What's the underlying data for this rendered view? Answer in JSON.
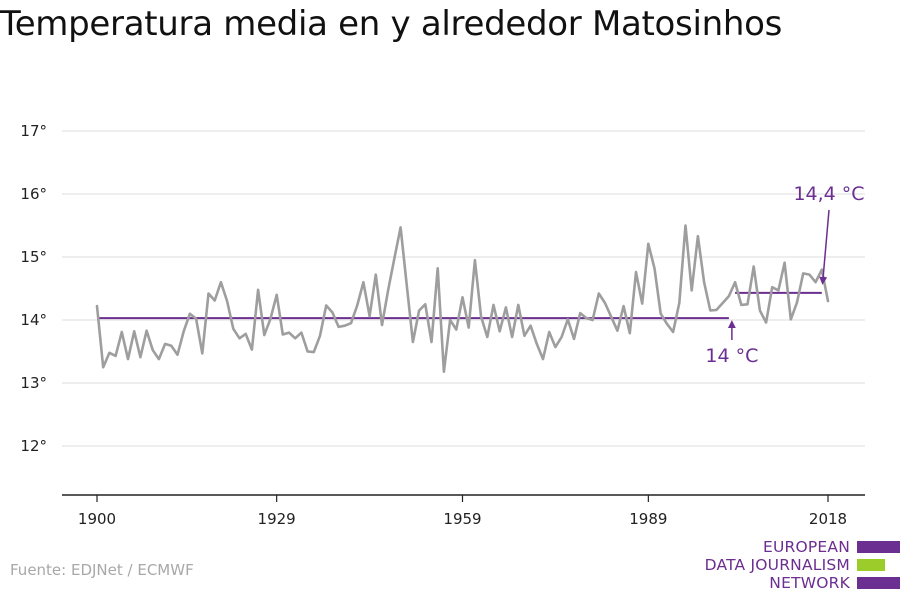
{
  "title": "Temperatura media en y alrededor Matosinhos",
  "source": "Fuente: EDJNet / ECMWF",
  "logo": {
    "lines": [
      "EUROPEAN",
      "DATA JOURNALISM",
      "NETWORK"
    ],
    "colors": {
      "purple": "#6b2e91",
      "green": "#9ccc2a"
    }
  },
  "colors": {
    "series": "#9e9e9e",
    "reference": "#6b2e91",
    "grid": "#dddddd",
    "axis": "#222222"
  },
  "chart_data": {
    "type": "line",
    "title": "Temperatura media en y alrededor Matosinhos",
    "xlabel": "",
    "ylabel": "",
    "ylim": [
      12.0,
      17.5
    ],
    "xlim": [
      1900,
      2018
    ],
    "y_ticks": [
      12,
      13,
      14,
      15,
      16,
      17
    ],
    "y_tick_labels": [
      "12°",
      "13°",
      "14°",
      "15°",
      "16°",
      "17°"
    ],
    "x_ticks": [
      1900,
      1929,
      1959,
      1989,
      2018
    ],
    "x_tick_labels": [
      "1900",
      "1929",
      "1959",
      "1989",
      "2018"
    ],
    "grid": true,
    "series": [
      {
        "x": [
          1900,
          1901,
          1902,
          1903,
          1904,
          1905,
          1906,
          1907,
          1908,
          1909,
          1910,
          1911,
          1912,
          1913,
          1914,
          1915,
          1916,
          1917,
          1918,
          1919,
          1920,
          1921,
          1922,
          1923,
          1924,
          1925,
          1926,
          1927,
          1928,
          1929,
          1930,
          1931,
          1932,
          1933,
          1934,
          1935,
          1936,
          1937,
          1938,
          1939,
          1940,
          1941,
          1942,
          1943,
          1944,
          1945,
          1946,
          1947,
          1948,
          1949,
          1950,
          1951,
          1952,
          1953,
          1954,
          1955,
          1956,
          1957,
          1958,
          1959,
          1960,
          1961,
          1962,
          1963,
          1964,
          1965,
          1966,
          1967,
          1968,
          1969,
          1970,
          1971,
          1972,
          1973,
          1974,
          1975,
          1976,
          1977,
          1978,
          1979,
          1980,
          1981,
          1982,
          1983,
          1984,
          1985,
          1986,
          1987,
          1988,
          1989,
          1990,
          1991,
          1992,
          1993,
          1994,
          1995,
          1996,
          1997,
          1998,
          1999,
          2000,
          2001,
          2002,
          2003,
          2004,
          2005,
          2006,
          2007,
          2008,
          2009,
          2010,
          2011,
          2012,
          2013,
          2014,
          2015,
          2016,
          2017,
          2018
        ],
        "values": [
          14.22,
          13.25,
          13.48,
          13.43,
          13.81,
          13.38,
          13.82,
          13.41,
          13.83,
          13.52,
          13.38,
          13.62,
          13.59,
          13.45,
          13.82,
          14.1,
          14.02,
          13.47,
          14.42,
          14.31,
          14.6,
          14.3,
          13.86,
          13.71,
          13.78,
          13.53,
          14.48,
          13.76,
          14.02,
          14.4,
          13.77,
          13.8,
          13.71,
          13.8,
          13.5,
          13.49,
          13.75,
          14.23,
          14.12,
          13.89,
          13.91,
          13.95,
          14.23,
          14.6,
          14.06,
          14.72,
          13.92,
          14.48,
          14.98,
          15.47,
          14.56,
          13.65,
          14.15,
          14.25,
          13.65,
          14.82,
          13.18,
          14.0,
          13.85,
          14.36,
          13.88,
          14.95,
          14.05,
          13.73,
          14.24,
          13.82,
          14.2,
          13.73,
          14.24,
          13.75,
          13.91,
          13.62,
          13.38,
          13.81,
          13.57,
          13.73,
          14.01,
          13.7,
          14.11,
          14.03,
          14.0,
          14.42,
          14.27,
          14.05,
          13.83,
          14.22,
          13.79,
          14.76,
          14.26,
          15.21,
          14.82,
          14.1,
          13.94,
          13.81,
          14.27,
          15.5,
          14.47,
          15.33,
          14.6,
          14.15,
          14.16,
          14.27,
          14.38,
          14.6,
          14.24,
          14.25,
          14.85,
          14.15,
          13.96,
          14.52,
          14.47,
          14.91,
          14.01,
          14.28,
          14.74,
          14.72,
          14.6,
          14.8,
          14.3
        ]
      }
    ],
    "reference_lines": [
      {
        "label": "14 °C",
        "value": 14.03,
        "x_from": 1900,
        "x_to": 2002
      },
      {
        "label": "14,4 °C",
        "value": 14.43,
        "x_from": 2003,
        "x_to": 2017
      }
    ]
  }
}
